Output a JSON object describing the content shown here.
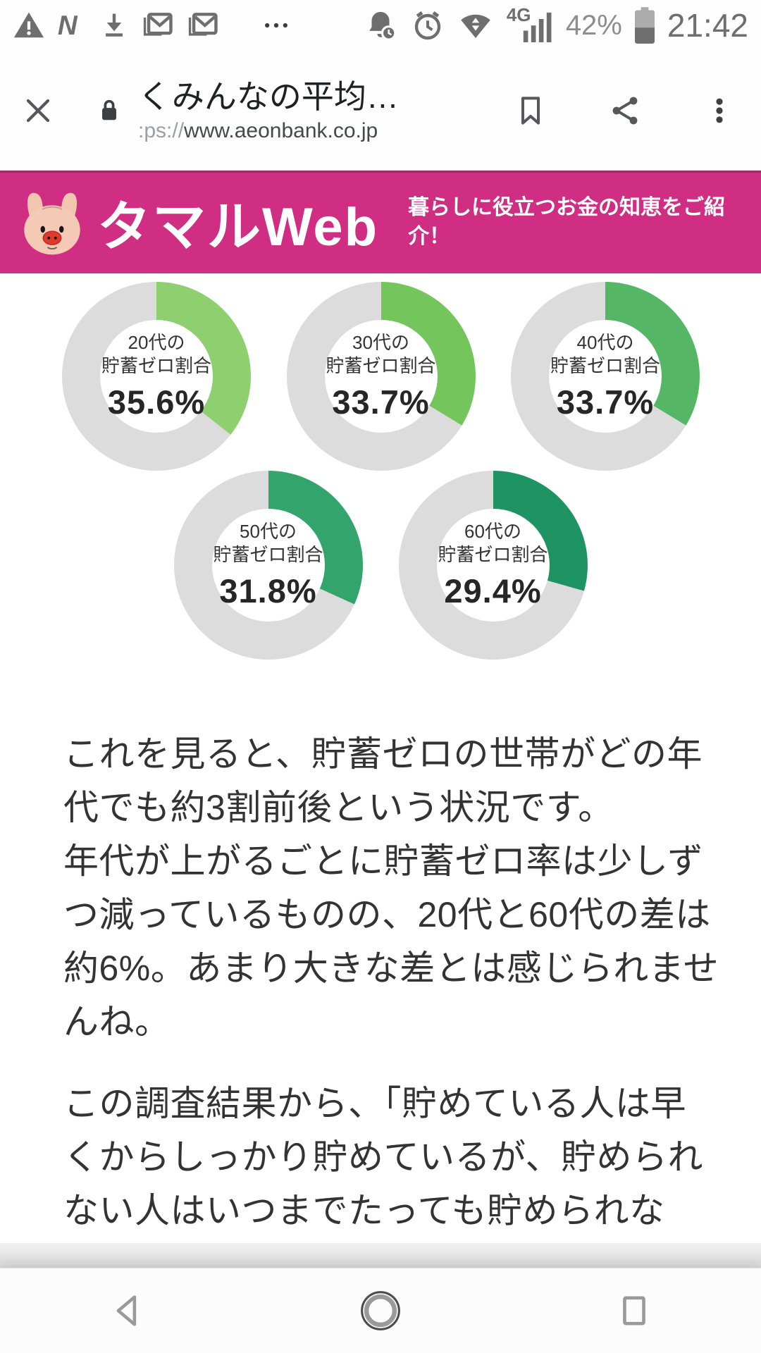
{
  "status_bar": {
    "time": "21:42",
    "battery_percent": "42%",
    "network_label": "4G",
    "left_icons": [
      "warning-icon",
      "n-notification-icon",
      "download-icon",
      "gmail-icon",
      "gmail-icon",
      "more-notifications-icon"
    ],
    "right_icons": [
      "reminder-bell-icon",
      "alarm-clock-icon",
      "wifi-transfer-icon",
      "signal-strength-icon",
      "battery-icon"
    ]
  },
  "browser_toolbar": {
    "title": "くみんなの平均…",
    "url_scheme": ":ps://",
    "url_host": "www.aeonbank.co.jp"
  },
  "banner": {
    "brand": "タマルWeb",
    "tagline_lines": [
      "暮らしに役立つお金の知恵をご紹",
      "介！"
    ],
    "bg_color": "#cf2e83"
  },
  "donuts": {
    "type": "pie",
    "variant": "donut",
    "remainder_color": "#dcdcdc",
    "charts": [
      {
        "id": "20s",
        "label_lines": [
          "20代の",
          "貯蓄ゼロ割合"
        ],
        "value": 35.6,
        "value_label": "35.6%",
        "color": "#8ed06f"
      },
      {
        "id": "30s",
        "label_lines": [
          "30代の",
          "貯蓄ゼロ割合"
        ],
        "value": 33.7,
        "value_label": "33.7%",
        "color": "#74c55c"
      },
      {
        "id": "40s",
        "label_lines": [
          "40代の",
          "貯蓄ゼロ割合"
        ],
        "value": 33.7,
        "value_label": "33.7%",
        "color": "#55b765"
      },
      {
        "id": "50s",
        "label_lines": [
          "50代の",
          "貯蓄ゼロ割合"
        ],
        "value": 31.8,
        "value_label": "31.8%",
        "color": "#33a56c"
      },
      {
        "id": "60s",
        "label_lines": [
          "60代の",
          "貯蓄ゼロ割合"
        ],
        "value": 29.4,
        "value_label": "29.4%",
        "color": "#1e9465"
      }
    ]
  },
  "article": {
    "paragraphs": [
      {
        "lines": [
          "これを見ると、貯蓄ゼロの世帯がどの年",
          "代でも約3割前後という状況です。",
          "年代が上がるごとに貯蓄ゼロ率は少しず",
          "つ減っているものの、20代と60代の差は",
          "約6%。あまり大きな差とは感じられませ",
          "んね。"
        ]
      },
      {
        "lines": [
          "この調査結果から、「貯めている人は早",
          "くからしっかり貯めているが、貯められ",
          "ない人はいつまでたっても貯められな"
        ]
      }
    ]
  },
  "navbar": {
    "icons": [
      "back-icon",
      "home-icon",
      "recents-icon"
    ]
  }
}
